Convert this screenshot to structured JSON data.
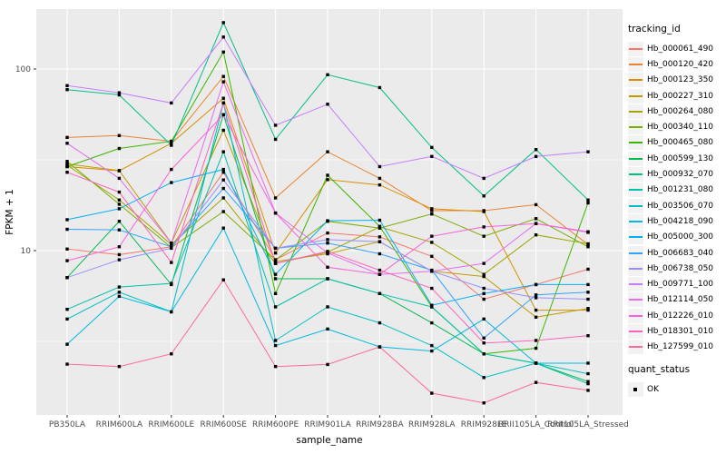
{
  "figure": {
    "background": "#FFFFFF",
    "panel_background": "#EBEBEB",
    "grid_color": "#FFFFFF",
    "point_color": "#000000",
    "axis_text_color": "#4D4D4D",
    "axis_title_color": "#000000",
    "legend_key_background": "#F2F2F2"
  },
  "legend": {
    "tracking_title": "tracking_id",
    "quant_title": "quant_status",
    "quant_label": "OK"
  },
  "chart_data": {
    "type": "line",
    "xlabel": "sample_name",
    "ylabel": "FPKM + 1",
    "yscale": "log10",
    "y_tick_labels": [
      "100",
      "10"
    ],
    "y_tick_values": [
      100,
      10
    ],
    "ylim": [
      1.3,
      230
    ],
    "grid": true,
    "legend_position": "right",
    "point_shape": "small black square (quant_status OK)",
    "categories": [
      "PB350LA",
      "RRIM600LA",
      "RRIM600LE",
      "RRIM600SE",
      "RRIM600PE",
      "RRIM901LA",
      "RRIM928BA",
      "RRIM928LA",
      "RRIM928LE",
      "RRII105LA_Control",
      "RRII105LA_Stressed"
    ],
    "series": [
      {
        "name": "Hb_000061_490",
        "color": "#F8766D",
        "values": [
          10.2,
          9.5,
          10.5,
          27,
          8.9,
          12.5,
          11.9,
          9.3,
          5.4,
          6.5,
          7.9
        ]
      },
      {
        "name": "Hb_000120_420",
        "color": "#EA8331",
        "values": [
          42,
          43,
          40,
          91,
          19.5,
          35,
          25,
          16.6,
          16.6,
          17.9,
          10.8
        ]
      },
      {
        "name": "Hb_000123_350",
        "color": "#D89000",
        "values": [
          29,
          27.5,
          39,
          69,
          9.7,
          24.6,
          23,
          17,
          16.4,
          4.7,
          4.7
        ]
      },
      {
        "name": "Hb_000227_310",
        "color": "#C09B00",
        "values": [
          30,
          27.6,
          11,
          46,
          8.7,
          9.6,
          11.2,
          7.7,
          7.2,
          4.3,
          4.8
        ]
      },
      {
        "name": "Hb_000264_080",
        "color": "#A3A500",
        "values": [
          29.5,
          19,
          10.8,
          19.5,
          8.5,
          9.8,
          13.5,
          11.1,
          7.4,
          12.2,
          10.9
        ]
      },
      {
        "name": "Hb_000340_110",
        "color": "#7CAE00",
        "values": [
          31,
          18,
          10.4,
          16.4,
          8.9,
          14.5,
          13.3,
          15.9,
          12,
          15,
          10.5
        ]
      },
      {
        "name": "Hb_000465_080",
        "color": "#39B600",
        "values": [
          29,
          36.5,
          40,
          124,
          5.8,
          26,
          13.6,
          4.9,
          2.7,
          2.9,
          18.3
        ]
      },
      {
        "name": "Hb_000599_130",
        "color": "#00BB4E",
        "values": [
          7.1,
          14.5,
          6.5,
          56,
          7.0,
          7.0,
          5.8,
          4.0,
          2.7,
          2.4,
          1.9
        ]
      },
      {
        "name": "Hb_000932_070",
        "color": "#00C087",
        "values": [
          77,
          72,
          38,
          180,
          41,
          93,
          79,
          37,
          20,
          36,
          19
        ]
      },
      {
        "name": "Hb_001231_080",
        "color": "#00C1A9",
        "values": [
          4.75,
          6.3,
          6.6,
          35,
          4.9,
          7.0,
          5.8,
          4.9,
          2.7,
          2.4,
          1.85
        ]
      },
      {
        "name": "Hb_003506_070",
        "color": "#00BFC4",
        "values": [
          4.2,
          5.9,
          4.6,
          65,
          3.2,
          4.9,
          4.0,
          3.0,
          2.0,
          2.4,
          2.1
        ]
      },
      {
        "name": "Hb_004218_090",
        "color": "#00BAE0",
        "values": [
          3.05,
          5.6,
          4.6,
          13.3,
          3.0,
          3.7,
          2.95,
          2.8,
          4.2,
          2.4,
          2.4
        ]
      },
      {
        "name": "Hb_005000_300",
        "color": "#00B0F6",
        "values": [
          14.8,
          17,
          23.7,
          28,
          7.4,
          14.6,
          14.7,
          5.0,
          5.8,
          6.5,
          6.5
        ]
      },
      {
        "name": "Hb_006683_040",
        "color": "#35A2FF",
        "values": [
          13.1,
          13,
          10.5,
          22,
          10.3,
          11,
          9.6,
          7.8,
          3.3,
          5.7,
          5.9
        ]
      },
      {
        "name": "Hb_006738_050",
        "color": "#9590FF",
        "values": [
          7.1,
          8.9,
          10.3,
          24.5,
          10.3,
          11.5,
          11.2,
          7.7,
          6.2,
          5.5,
          5.4
        ]
      },
      {
        "name": "Hb_009771_100",
        "color": "#C77CFF",
        "values": [
          81,
          74,
          65,
          150,
          49,
          64,
          29,
          33,
          25,
          33,
          35
        ]
      },
      {
        "name": "Hb_012114_050",
        "color": "#E76BF3",
        "values": [
          39,
          25,
          11,
          85,
          16.1,
          9.7,
          7.4,
          7.7,
          8.5,
          14.1,
          12.6
        ]
      },
      {
        "name": "Hb_012226_010",
        "color": "#FA62DB",
        "values": [
          8.8,
          10.5,
          28,
          56,
          16.1,
          8.1,
          7.4,
          12,
          13.5,
          14.1,
          12.7
        ]
      },
      {
        "name": "Hb_018301_010",
        "color": "#FF62BC",
        "values": [
          27,
          21,
          8.6,
          65,
          8.5,
          9.9,
          7.8,
          6.2,
          3.1,
          3.2,
          3.4
        ]
      },
      {
        "name": "Hb_127599_010",
        "color": "#FF6A98",
        "values": [
          2.37,
          2.3,
          2.7,
          6.9,
          2.3,
          2.36,
          2.95,
          1.64,
          1.45,
          1.88,
          1.7
        ]
      }
    ],
    "quant_status": {
      "label": "OK",
      "marker": "black square"
    }
  }
}
